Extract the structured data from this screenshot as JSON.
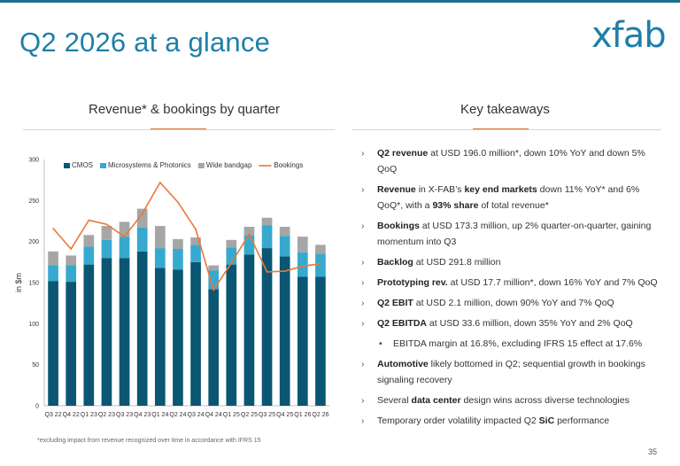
{
  "slide": {
    "title": "Q2 2026 at a glance",
    "logo": "xfab",
    "footnote": "*excluding impact from revenue recognized over time in accordance with IFRS 15",
    "page_number": "35"
  },
  "chart_section": {
    "heading": "Revenue* & bookings by quarter"
  },
  "takeaways_section": {
    "heading": "Key takeaways",
    "items": [
      {
        "sub": false,
        "parts": [
          {
            "bold": true,
            "text": "Q2 revenue"
          },
          {
            "bold": false,
            "text": " at USD 196.0 million*, down 10% YoY and down 5% QoQ"
          }
        ]
      },
      {
        "sub": false,
        "parts": [
          {
            "bold": true,
            "text": "Revenue"
          },
          {
            "bold": false,
            "text": " in X-FAB’s "
          },
          {
            "bold": true,
            "text": "key end markets"
          },
          {
            "bold": false,
            "text": " down 11% YoY* and 6% QoQ*, with a "
          },
          {
            "bold": true,
            "text": "93% share"
          },
          {
            "bold": false,
            "text": " of total revenue*"
          }
        ]
      },
      {
        "sub": false,
        "parts": [
          {
            "bold": true,
            "text": "Bookings"
          },
          {
            "bold": false,
            "text": " at USD 173.3 million, up 2% quarter-on-quarter, gaining momentum into Q3"
          }
        ]
      },
      {
        "sub": false,
        "parts": [
          {
            "bold": true,
            "text": "Backlog"
          },
          {
            "bold": false,
            "text": " at USD 291.8 million"
          }
        ]
      },
      {
        "sub": false,
        "parts": [
          {
            "bold": true,
            "text": "Prototyping rev."
          },
          {
            "bold": false,
            "text": " at USD 17.7 million*, down 16% YoY and 7% QoQ"
          }
        ]
      },
      {
        "sub": false,
        "parts": [
          {
            "bold": true,
            "text": "Q2 EBIT"
          },
          {
            "bold": false,
            "text": " at USD 2.1 million, down 90% YoY and 7% QoQ"
          }
        ]
      },
      {
        "sub": false,
        "parts": [
          {
            "bold": true,
            "text": "Q2 EBITDA"
          },
          {
            "bold": false,
            "text": " at USD 33.6 million, down 35% YoY and 2% QoQ"
          }
        ]
      },
      {
        "sub": true,
        "parts": [
          {
            "bold": false,
            "text": "EBITDA margin at 16.8%, excluding IFRS 15 effect at 17.6%"
          }
        ]
      },
      {
        "sub": false,
        "parts": [
          {
            "bold": true,
            "text": "Automotive"
          },
          {
            "bold": false,
            "text": " likely bottomed in Q2; sequential growth in bookings signaling recovery"
          }
        ]
      },
      {
        "sub": false,
        "parts": [
          {
            "bold": false,
            "text": "Several "
          },
          {
            "bold": true,
            "text": "data center"
          },
          {
            "bold": false,
            "text": " design wins across diverse technologies"
          }
        ]
      },
      {
        "sub": false,
        "parts": [
          {
            "bold": false,
            "text": "Temporary order volatility impacted Q2 "
          },
          {
            "bold": true,
            "text": "SiC"
          },
          {
            "bold": false,
            "text": " performance"
          }
        ]
      }
    ]
  },
  "chart_data": {
    "type": "bar",
    "stacked": true,
    "categories": [
      "Q3 22",
      "Q4 22",
      "Q1 23",
      "Q2 23",
      "Q3 23",
      "Q4 23",
      "Q1 24",
      "Q2 24",
      "Q3 24",
      "Q4 24",
      "Q1 25",
      "Q2 25",
      "Q3 25",
      "Q4 25",
      "Q1 26",
      "Q2 26"
    ],
    "series": [
      {
        "name": "CMOS",
        "kind": "bar",
        "color": "#0b5672",
        "values": [
          152,
          151,
          172,
          180,
          180,
          188,
          168,
          166,
          175,
          142,
          172,
          184,
          192,
          182,
          157,
          157
        ]
      },
      {
        "name": "Microsystems & Photonics",
        "kind": "bar",
        "color": "#37a9cf",
        "values": [
          19,
          20,
          22,
          22,
          26,
          29,
          24,
          25,
          21,
          23,
          21,
          24,
          28,
          25,
          30,
          28
        ]
      },
      {
        "name": "Wide bandgap",
        "kind": "bar",
        "color": "#a6a6a6",
        "values": [
          17,
          12,
          14,
          17,
          18,
          23,
          27,
          12,
          9,
          6,
          9,
          10,
          9,
          11,
          19,
          11
        ]
      },
      {
        "name": "Bookings",
        "kind": "line",
        "color": "#e8783b",
        "values": [
          216,
          191,
          226,
          221,
          206,
          234,
          272,
          248,
          215,
          141,
          174,
          209,
          163,
          164,
          170,
          173
        ]
      }
    ],
    "ylabel": "in $m",
    "ylim": [
      0,
      300
    ],
    "yticks": [
      0,
      50,
      100,
      150,
      200,
      250,
      300
    ],
    "legend_position": "top",
    "grid": false
  }
}
